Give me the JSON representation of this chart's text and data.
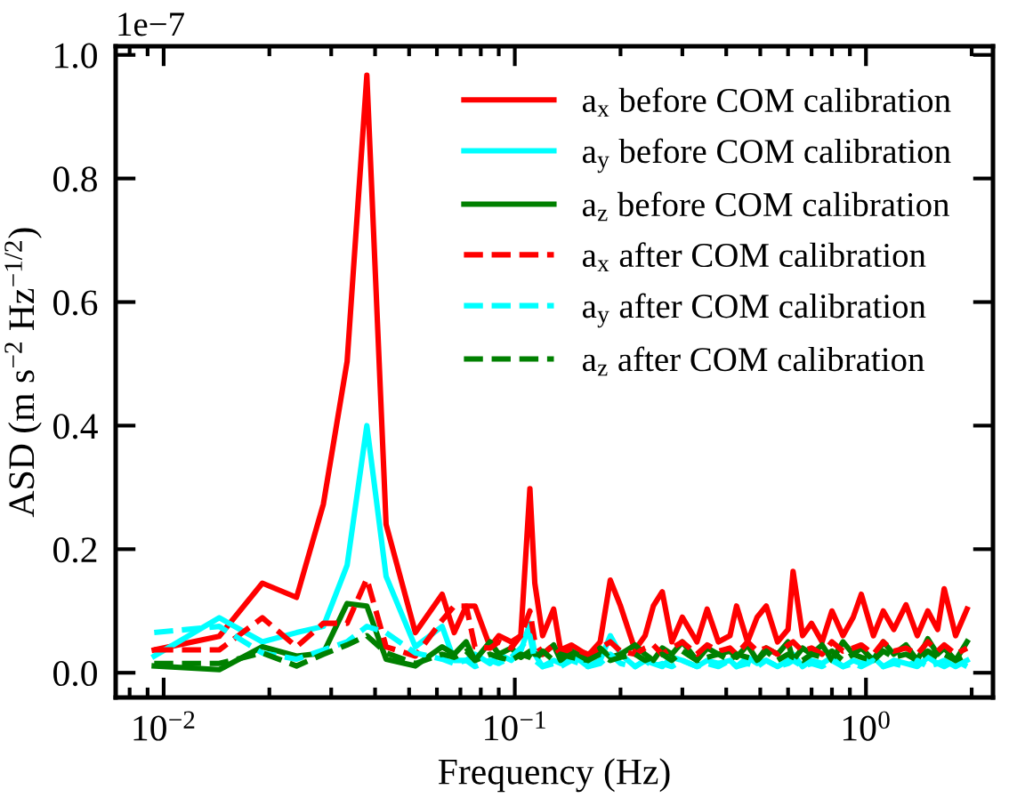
{
  "chart_data": {
    "type": "line",
    "xlabel": "Frequency (Hz)",
    "ylabel": "ASD (m s$^{−2}$ Hz$^{−1/2}$)",
    "annotations": [
      "1e−7"
    ],
    "log": "x",
    "grid": false,
    "legend": "top right",
    "xlim": [
      0.0073,
      2.3
    ],
    "xticks": [
      {
        "value": 0.01,
        "label": "10$^{−2}$"
      },
      {
        "value": 0.1,
        "label": "10$^{−1}$"
      },
      {
        "value": 1,
        "label": "10$^{0}$"
      }
    ],
    "ylim": [
      -0.04,
      1.014
    ],
    "yticks": [
      {
        "value": 0,
        "label": "0.0"
      },
      {
        "value": 0.2,
        "label": "0.2"
      },
      {
        "value": 0.4,
        "label": "0.4"
      },
      {
        "value": 0.6,
        "label": "0.6"
      },
      {
        "value": 0.8,
        "label": "0.8"
      },
      {
        "value": 1.0,
        "label": "1.0"
      }
    ],
    "x": [
      0.0094,
      0.0144,
      0.0191,
      0.0239,
      0.0285,
      0.0333,
      0.0379,
      0.043,
      0.0521,
      0.0621,
      0.0672,
      0.0727,
      0.077,
      0.085,
      0.09,
      0.0977,
      0.104,
      0.1104,
      0.114,
      0.12,
      0.129,
      0.135,
      0.145,
      0.1617,
      0.175,
      0.187,
      0.2,
      0.22,
      0.235,
      0.248,
      0.263,
      0.28,
      0.3,
      0.33,
      0.353,
      0.38,
      0.41,
      0.428,
      0.46,
      0.49,
      0.52,
      0.56,
      0.6,
      0.62,
      0.66,
      0.7,
      0.75,
      0.8,
      0.86,
      0.92,
      0.97,
      1.05,
      1.12,
      1.2,
      1.3,
      1.4,
      1.5,
      1.6,
      1.67,
      1.8,
      1.94
    ],
    "series": [
      {
        "name": "a$_{x}$ before COM calibration",
        "color": "#ff0000",
        "line_style": "solid",
        "values": [
          0.037,
          0.059,
          0.145,
          0.122,
          0.273,
          0.504,
          0.967,
          0.24,
          0.065,
          0.127,
          0.065,
          0.108,
          0.108,
          0.042,
          0.06,
          0.05,
          0.06,
          0.298,
          0.145,
          0.06,
          0.103,
          0.037,
          0.045,
          0.028,
          0.05,
          0.15,
          0.108,
          0.037,
          0.06,
          0.108,
          0.131,
          0.05,
          0.09,
          0.05,
          0.103,
          0.05,
          0.06,
          0.108,
          0.05,
          0.09,
          0.108,
          0.05,
          0.07,
          0.164,
          0.06,
          0.08,
          0.05,
          0.1,
          0.06,
          0.09,
          0.127,
          0.06,
          0.1,
          0.07,
          0.11,
          0.06,
          0.1,
          0.07,
          0.136,
          0.06,
          0.103
        ]
      },
      {
        "name": "a$_{y}$ before COM calibration",
        "color": "#00ffff",
        "line_style": "solid",
        "values": [
          0.027,
          0.089,
          0.05,
          0.065,
          0.075,
          0.174,
          0.4,
          0.156,
          0.042,
          0.075,
          0.02,
          0.02,
          0.03,
          0.015,
          0.03,
          0.02,
          0.035,
          0.08,
          0.03,
          0.01,
          0.02,
          0.015,
          0.03,
          0.01,
          0.02,
          0.06,
          0.03,
          0.01,
          0.02,
          0.015,
          0.01,
          0.025,
          0.02,
          0.01,
          0.02,
          0.015,
          0.02,
          0.01,
          0.025,
          0.015,
          0.02,
          0.01,
          0.02,
          0.03,
          0.01,
          0.02,
          0.015,
          0.025,
          0.01,
          0.02,
          0.015,
          0.025,
          0.01,
          0.02,
          0.015,
          0.01,
          0.025,
          0.015,
          0.02,
          0.01,
          0.02
        ]
      },
      {
        "name": "a$_{z}$ before COM calibration",
        "color": "#008000",
        "line_style": "solid",
        "values": [
          0.011,
          0.005,
          0.042,
          0.027,
          0.032,
          0.112,
          0.108,
          0.022,
          0.011,
          0.042,
          0.03,
          0.05,
          0.02,
          0.05,
          0.03,
          0.04,
          0.025,
          0.035,
          0.03,
          0.03,
          0.045,
          0.02,
          0.035,
          0.02,
          0.04,
          0.025,
          0.03,
          0.045,
          0.03,
          0.02,
          0.04,
          0.03,
          0.05,
          0.02,
          0.04,
          0.03,
          0.035,
          0.025,
          0.045,
          0.02,
          0.04,
          0.03,
          0.05,
          0.02,
          0.04,
          0.03,
          0.045,
          0.02,
          0.05,
          0.03,
          0.04,
          0.02,
          0.05,
          0.03,
          0.045,
          0.02,
          0.055,
          0.03,
          0.04,
          0.02,
          0.05
        ]
      },
      {
        "name": "a$_{x}$ after COM calibration",
        "color": "#ff0000",
        "line_style": "dashed",
        "values": [
          0.037,
          0.037,
          0.089,
          0.042,
          0.08,
          0.08,
          0.152,
          0.042,
          0.027,
          0.085,
          0.108,
          0.108,
          0.042,
          0.04,
          0.05,
          0.04,
          0.06,
          0.1,
          0.05,
          0.03,
          0.045,
          0.03,
          0.04,
          0.03,
          0.04,
          0.05,
          0.035,
          0.03,
          0.04,
          0.045,
          0.03,
          0.04,
          0.05,
          0.03,
          0.045,
          0.035,
          0.04,
          0.03,
          0.05,
          0.035,
          0.04,
          0.03,
          0.045,
          0.05,
          0.035,
          0.04,
          0.03,
          0.05,
          0.035,
          0.04,
          0.045,
          0.03,
          0.05,
          0.035,
          0.04,
          0.03,
          0.05,
          0.035,
          0.045,
          0.03,
          0.04
        ]
      },
      {
        "name": "a$_{y}$ after COM calibration",
        "color": "#00ffff",
        "line_style": "dashed",
        "values": [
          0.065,
          0.075,
          0.032,
          0.022,
          0.037,
          0.05,
          0.075,
          0.065,
          0.032,
          0.022,
          0.015,
          0.02,
          0.01,
          0.02,
          0.015,
          0.025,
          0.04,
          0.06,
          0.02,
          0.01,
          0.015,
          0.01,
          0.02,
          0.01,
          0.015,
          0.03,
          0.015,
          0.01,
          0.02,
          0.01,
          0.015,
          0.01,
          0.02,
          0.01,
          0.015,
          0.01,
          0.02,
          0.01,
          0.015,
          0.01,
          0.02,
          0.01,
          0.015,
          0.02,
          0.01,
          0.015,
          0.01,
          0.02,
          0.01,
          0.015,
          0.01,
          0.02,
          0.01,
          0.015,
          0.01,
          0.02,
          0.01,
          0.015,
          0.01,
          0.02,
          0.01
        ]
      },
      {
        "name": "a$_{z}$ after COM calibration",
        "color": "#008000",
        "line_style": "dashed",
        "values": [
          0.015,
          0.015,
          0.032,
          0.011,
          0.03,
          0.045,
          0.06,
          0.032,
          0.015,
          0.03,
          0.025,
          0.035,
          0.02,
          0.03,
          0.025,
          0.02,
          0.03,
          0.025,
          0.02,
          0.035,
          0.02,
          0.03,
          0.025,
          0.02,
          0.03,
          0.02,
          0.025,
          0.03,
          0.02,
          0.025,
          0.03,
          0.02,
          0.035,
          0.02,
          0.025,
          0.03,
          0.02,
          0.03,
          0.025,
          0.02,
          0.035,
          0.02,
          0.03,
          0.025,
          0.02,
          0.03,
          0.025,
          0.035,
          0.02,
          0.03,
          0.025,
          0.02,
          0.035,
          0.025,
          0.03,
          0.02,
          0.035,
          0.025,
          0.03,
          0.02,
          0.03
        ]
      }
    ]
  }
}
